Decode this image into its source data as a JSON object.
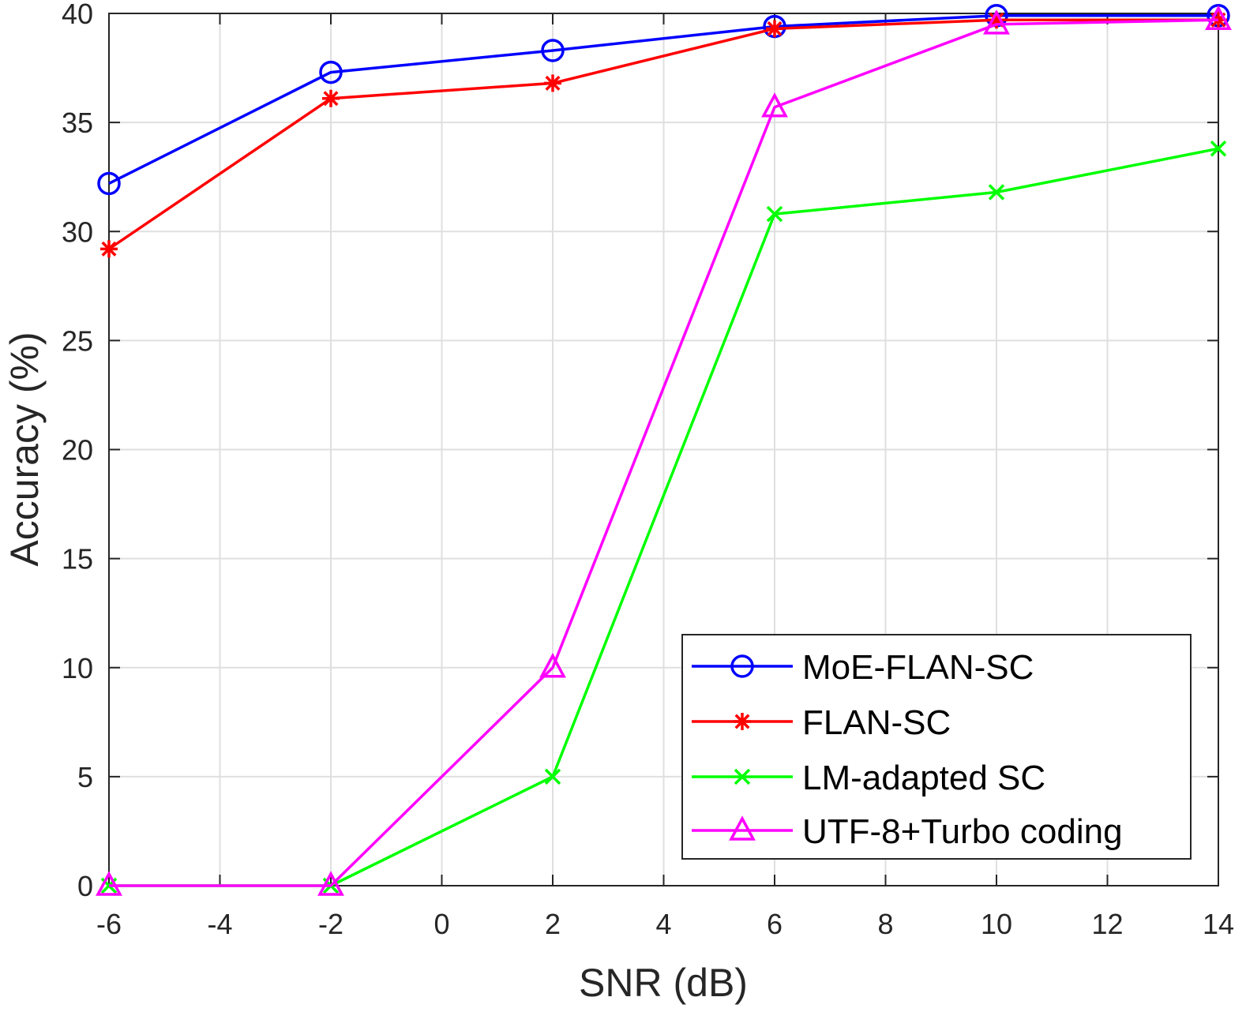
{
  "chart_data": {
    "type": "line",
    "title": "",
    "xlabel": "SNR (dB)",
    "ylabel": "Accuracy (%)",
    "xlim": [
      -6,
      14
    ],
    "ylim": [
      0,
      40
    ],
    "xticks": [
      "-6",
      "-4",
      "-2",
      "0",
      "2",
      "4",
      "6",
      "8",
      "10",
      "12",
      "14"
    ],
    "yticks": [
      "0",
      "5",
      "10",
      "15",
      "20",
      "25",
      "30",
      "35",
      "40"
    ],
    "grid": true,
    "legend_position": "bottom-right",
    "x": [
      -6,
      -2,
      2,
      6,
      10,
      14
    ],
    "series": [
      {
        "name": "MoE-FLAN-SC",
        "color": "#0000ff",
        "marker": "circle",
        "values": [
          32.2,
          37.3,
          38.3,
          39.4,
          39.9,
          39.9
        ]
      },
      {
        "name": "FLAN-SC",
        "color": "#ff0000",
        "marker": "asterisk",
        "values": [
          29.2,
          36.1,
          36.8,
          39.3,
          39.7,
          39.7
        ]
      },
      {
        "name": "LM-adapted SC",
        "color": "#00ff00",
        "marker": "x",
        "values": [
          0,
          0,
          5,
          30.8,
          31.8,
          33.8
        ]
      },
      {
        "name": "UTF-8+Turbo coding",
        "color": "#ff00ff",
        "marker": "triangle",
        "values": [
          0,
          0,
          10,
          35.7,
          39.5,
          39.7
        ]
      }
    ]
  }
}
